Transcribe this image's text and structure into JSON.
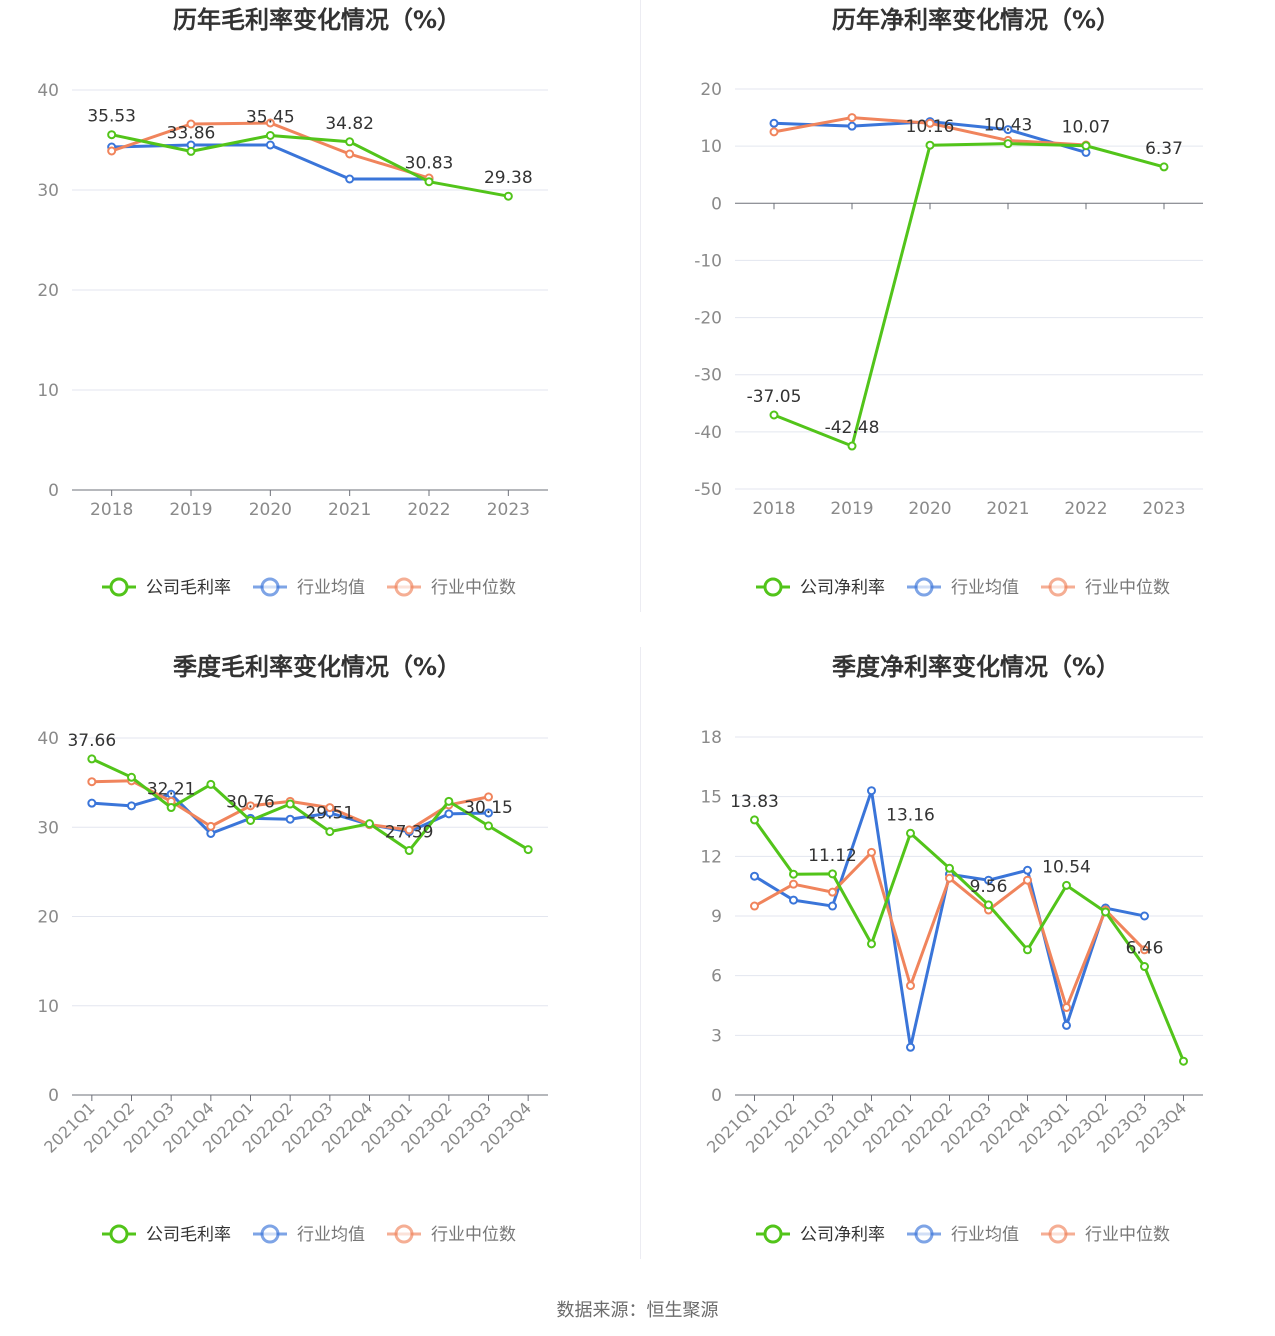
{
  "source_text": "数据来源：恒生聚源",
  "chart_data": [
    {
      "type": "line",
      "title": "历年毛利率变化情况（%）",
      "categories": [
        "2018",
        "2019",
        "2020",
        "2021",
        "2022",
        "2023"
      ],
      "ylim": [
        0,
        40
      ],
      "yticks": [
        0,
        10,
        20,
        30,
        40
      ],
      "rotate_labels": false,
      "series": [
        {
          "name": "公司毛利率",
          "color": "#52c41a",
          "values": [
            35.53,
            33.86,
            35.45,
            34.82,
            30.83,
            29.38
          ],
          "labels": [
            "35.53",
            "33.86",
            "35.45",
            "34.82",
            "30.83",
            "29.38"
          ]
        },
        {
          "name": "行业均值",
          "color": "#3a75d9",
          "values": [
            34.3,
            34.5,
            34.5,
            31.1,
            31.1,
            null
          ]
        },
        {
          "name": "行业中位数",
          "color": "#f0845c",
          "values": [
            33.9,
            36.6,
            36.7,
            33.6,
            31.2,
            null
          ]
        }
      ]
    },
    {
      "type": "line",
      "title": "历年净利率变化情况（%）",
      "categories": [
        "2018",
        "2019",
        "2020",
        "2021",
        "2022",
        "2023"
      ],
      "ylim": [
        -50,
        20
      ],
      "yticks": [
        -50,
        -40,
        -30,
        -20,
        -10,
        0,
        10,
        20
      ],
      "rotate_labels": false,
      "series": [
        {
          "name": "公司净利率",
          "color": "#52c41a",
          "values": [
            -37.05,
            -42.48,
            10.16,
            10.43,
            10.07,
            6.37
          ],
          "labels": [
            "-37.05",
            "-42.48",
            "10.16",
            "10.43",
            "10.07",
            "6.37"
          ]
        },
        {
          "name": "行业均值",
          "color": "#3a75d9",
          "values": [
            14.0,
            13.5,
            14.3,
            12.9,
            8.9,
            null
          ]
        },
        {
          "name": "行业中位数",
          "color": "#f0845c",
          "values": [
            12.5,
            15.0,
            14.0,
            11.0,
            10.2,
            null
          ]
        }
      ]
    },
    {
      "type": "line",
      "title": "季度毛利率变化情况（%）",
      "categories": [
        "2021Q1",
        "2021Q2",
        "2021Q3",
        "2021Q4",
        "2022Q1",
        "2022Q2",
        "2022Q3",
        "2022Q4",
        "2023Q1",
        "2023Q2",
        "2023Q3",
        "2023Q4"
      ],
      "ylim": [
        0,
        40
      ],
      "yticks": [
        0,
        10,
        20,
        30,
        40
      ],
      "rotate_labels": true,
      "series": [
        {
          "name": "公司毛利率",
          "color": "#52c41a",
          "values": [
            37.66,
            35.6,
            32.21,
            34.8,
            30.76,
            32.6,
            29.51,
            30.4,
            27.39,
            32.9,
            30.15,
            27.5
          ],
          "labels": [
            "37.66",
            "",
            "32.21",
            "",
            "30.76",
            "",
            "29.51",
            "",
            "27.39",
            "",
            "30.15",
            ""
          ]
        },
        {
          "name": "行业均值",
          "color": "#3a75d9",
          "values": [
            32.7,
            32.4,
            33.7,
            29.3,
            31.0,
            30.9,
            31.6,
            30.3,
            29.5,
            31.5,
            31.6,
            null
          ]
        },
        {
          "name": "行业中位数",
          "color": "#f0845c",
          "values": [
            35.1,
            35.2,
            32.9,
            30.1,
            32.4,
            32.9,
            32.2,
            30.3,
            29.7,
            32.5,
            33.4,
            null
          ]
        }
      ]
    },
    {
      "type": "line",
      "title": "季度净利率变化情况（%）",
      "categories": [
        "2021Q1",
        "2021Q2",
        "2021Q3",
        "2021Q4",
        "2022Q1",
        "2022Q2",
        "2022Q3",
        "2022Q4",
        "2023Q1",
        "2023Q2",
        "2023Q3",
        "2023Q4"
      ],
      "ylim": [
        0,
        18
      ],
      "yticks": [
        0,
        3,
        6,
        9,
        12,
        15,
        18
      ],
      "rotate_labels": true,
      "series": [
        {
          "name": "公司净利率",
          "color": "#52c41a",
          "values": [
            13.83,
            11.1,
            11.12,
            7.6,
            13.16,
            11.4,
            9.56,
            7.3,
            10.54,
            9.2,
            6.46,
            1.7
          ],
          "labels": [
            "13.83",
            "",
            "11.12",
            "",
            "13.16",
            "",
            "9.56",
            "",
            "10.54",
            "",
            "6.46",
            ""
          ]
        },
        {
          "name": "行业均值",
          "color": "#3a75d9",
          "values": [
            11.0,
            9.8,
            9.5,
            15.3,
            2.4,
            11.1,
            10.8,
            11.3,
            3.5,
            9.4,
            9.0,
            null
          ]
        },
        {
          "name": "行业中位数",
          "color": "#f0845c",
          "values": [
            9.5,
            10.6,
            10.2,
            12.2,
            5.5,
            10.9,
            9.3,
            10.8,
            4.4,
            9.3,
            7.3,
            null
          ]
        }
      ]
    }
  ]
}
